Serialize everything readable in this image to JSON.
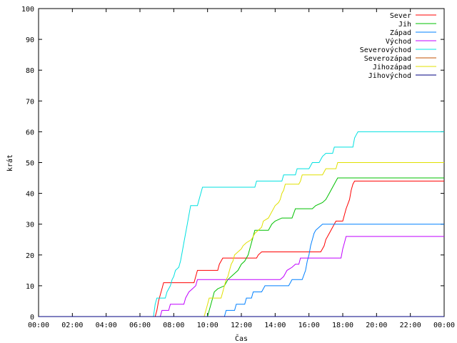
{
  "chart_data": {
    "type": "line",
    "xlabel": "Čas",
    "ylabel": "krát",
    "xlim": [
      0,
      24
    ],
    "ylim": [
      0,
      100
    ],
    "x_ticks": [
      0,
      2,
      4,
      6,
      8,
      10,
      12,
      14,
      16,
      18,
      20,
      22,
      24
    ],
    "x_tick_labels": [
      "00:00",
      "02:00",
      "04:00",
      "06:00",
      "08:00",
      "10:00",
      "12:00",
      "14:00",
      "16:00",
      "18:00",
      "20:00",
      "22:00",
      "00:00"
    ],
    "y_ticks": [
      0,
      10,
      20,
      30,
      40,
      50,
      60,
      70,
      80,
      90,
      100
    ],
    "y_tick_labels": [
      "0",
      "10",
      "20",
      "30",
      "40",
      "50",
      "60",
      "70",
      "80",
      "90",
      "100"
    ],
    "legend_position": "top-right",
    "series": [
      {
        "name": "Sever",
        "color": "#ff0000",
        "points": [
          [
            0,
            0
          ],
          [
            6.9,
            0
          ],
          [
            7.0,
            2
          ],
          [
            7.1,
            5
          ],
          [
            7.2,
            7
          ],
          [
            7.3,
            9
          ],
          [
            7.4,
            11
          ],
          [
            9.2,
            11
          ],
          [
            9.3,
            13
          ],
          [
            9.4,
            15
          ],
          [
            10.6,
            15
          ],
          [
            10.7,
            17
          ],
          [
            10.9,
            19
          ],
          [
            12.9,
            19
          ],
          [
            13.0,
            20
          ],
          [
            13.2,
            21
          ],
          [
            16.7,
            21
          ],
          [
            16.9,
            23
          ],
          [
            17.0,
            25
          ],
          [
            17.2,
            27
          ],
          [
            17.4,
            29
          ],
          [
            17.6,
            31
          ],
          [
            18.0,
            31
          ],
          [
            18.2,
            35
          ],
          [
            18.4,
            38
          ],
          [
            18.5,
            41
          ],
          [
            18.6,
            43
          ],
          [
            18.7,
            44
          ],
          [
            24,
            44
          ]
        ]
      },
      {
        "name": "Jih",
        "color": "#00c000",
        "points": [
          [
            0,
            0
          ],
          [
            10.0,
            0
          ],
          [
            10.1,
            2
          ],
          [
            10.2,
            4
          ],
          [
            10.3,
            6
          ],
          [
            10.4,
            8
          ],
          [
            10.6,
            9
          ],
          [
            11.0,
            10
          ],
          [
            11.2,
            12
          ],
          [
            11.4,
            13
          ],
          [
            11.6,
            14
          ],
          [
            11.8,
            15
          ],
          [
            12.0,
            17
          ],
          [
            12.2,
            18
          ],
          [
            12.4,
            20
          ],
          [
            12.5,
            22
          ],
          [
            12.6,
            24
          ],
          [
            12.7,
            26
          ],
          [
            12.8,
            28
          ],
          [
            13.6,
            28
          ],
          [
            13.8,
            30
          ],
          [
            14.0,
            31
          ],
          [
            14.4,
            32
          ],
          [
            15.0,
            32
          ],
          [
            15.2,
            35
          ],
          [
            16.2,
            35
          ],
          [
            16.4,
            36
          ],
          [
            16.8,
            37
          ],
          [
            17.0,
            38
          ],
          [
            17.2,
            40
          ],
          [
            17.4,
            42
          ],
          [
            17.6,
            44
          ],
          [
            17.7,
            45
          ],
          [
            24,
            45
          ]
        ]
      },
      {
        "name": "Západ",
        "color": "#0080ff",
        "points": [
          [
            0,
            0
          ],
          [
            11.0,
            0
          ],
          [
            11.1,
            2
          ],
          [
            11.6,
            2
          ],
          [
            11.7,
            4
          ],
          [
            12.2,
            4
          ],
          [
            12.3,
            6
          ],
          [
            12.6,
            6
          ],
          [
            12.7,
            8
          ],
          [
            13.2,
            8
          ],
          [
            13.4,
            10
          ],
          [
            14.8,
            10
          ],
          [
            15.0,
            12
          ],
          [
            15.6,
            12
          ],
          [
            15.8,
            15
          ],
          [
            15.9,
            18
          ],
          [
            16.0,
            20
          ],
          [
            16.1,
            23
          ],
          [
            16.2,
            25
          ],
          [
            16.3,
            27
          ],
          [
            16.4,
            28
          ],
          [
            16.6,
            29
          ],
          [
            16.8,
            30
          ],
          [
            24,
            30
          ]
        ]
      },
      {
        "name": "Východ",
        "color": "#c000ff",
        "points": [
          [
            0,
            0
          ],
          [
            7.2,
            0
          ],
          [
            7.3,
            2
          ],
          [
            7.7,
            2
          ],
          [
            7.8,
            4
          ],
          [
            8.6,
            4
          ],
          [
            8.7,
            6
          ],
          [
            8.9,
            8
          ],
          [
            9.1,
            9
          ],
          [
            9.3,
            10
          ],
          [
            9.4,
            12
          ],
          [
            12.0,
            12
          ],
          [
            14.3,
            12
          ],
          [
            14.5,
            13
          ],
          [
            14.7,
            15
          ],
          [
            15.0,
            16
          ],
          [
            15.2,
            17
          ],
          [
            15.4,
            17
          ],
          [
            15.5,
            19
          ],
          [
            17.9,
            19
          ],
          [
            18.0,
            22
          ],
          [
            18.1,
            24
          ],
          [
            18.2,
            26
          ],
          [
            24,
            26
          ]
        ]
      },
      {
        "name": "Severovýchod",
        "color": "#00e0e0",
        "points": [
          [
            0,
            0
          ],
          [
            6.8,
            0
          ],
          [
            6.9,
            4
          ],
          [
            7.0,
            6
          ],
          [
            7.5,
            6
          ],
          [
            7.6,
            8
          ],
          [
            7.8,
            10
          ],
          [
            7.9,
            12
          ],
          [
            8.0,
            13
          ],
          [
            8.1,
            15
          ],
          [
            8.3,
            16
          ],
          [
            8.4,
            18
          ],
          [
            8.5,
            21
          ],
          [
            8.6,
            24
          ],
          [
            8.7,
            27
          ],
          [
            8.8,
            30
          ],
          [
            8.9,
            33
          ],
          [
            9.0,
            36
          ],
          [
            9.4,
            36
          ],
          [
            9.5,
            38
          ],
          [
            9.6,
            40
          ],
          [
            9.7,
            42
          ],
          [
            12.0,
            42
          ],
          [
            12.8,
            42
          ],
          [
            12.9,
            44
          ],
          [
            14.4,
            44
          ],
          [
            14.5,
            46
          ],
          [
            15.2,
            46
          ],
          [
            15.3,
            48
          ],
          [
            16.0,
            48
          ],
          [
            16.2,
            50
          ],
          [
            16.6,
            50
          ],
          [
            16.8,
            52
          ],
          [
            17.0,
            53
          ],
          [
            17.4,
            53
          ],
          [
            17.5,
            55
          ],
          [
            18.6,
            55
          ],
          [
            18.7,
            58
          ],
          [
            18.8,
            59
          ],
          [
            18.9,
            60
          ],
          [
            24,
            60
          ]
        ]
      },
      {
        "name": "Severozápad",
        "color": "#c05000",
        "points": [
          [
            0,
            0
          ],
          [
            24,
            0
          ]
        ]
      },
      {
        "name": "Jihozápad",
        "color": "#e0e000",
        "points": [
          [
            0,
            0
          ],
          [
            9.8,
            0
          ],
          [
            9.9,
            2
          ],
          [
            10.0,
            4
          ],
          [
            10.1,
            6
          ],
          [
            10.8,
            6
          ],
          [
            10.9,
            8
          ],
          [
            11.0,
            10
          ],
          [
            11.1,
            12
          ],
          [
            11.2,
            13
          ],
          [
            11.3,
            15
          ],
          [
            11.4,
            17
          ],
          [
            11.5,
            18
          ],
          [
            11.6,
            20
          ],
          [
            11.8,
            21
          ],
          [
            12.0,
            22
          ],
          [
            12.1,
            23
          ],
          [
            12.3,
            24
          ],
          [
            12.6,
            25
          ],
          [
            12.8,
            27
          ],
          [
            13.0,
            28
          ],
          [
            13.2,
            29
          ],
          [
            13.3,
            31
          ],
          [
            13.6,
            32
          ],
          [
            13.8,
            34
          ],
          [
            14.0,
            36
          ],
          [
            14.2,
            37
          ],
          [
            14.3,
            38
          ],
          [
            14.4,
            40
          ],
          [
            14.5,
            41
          ],
          [
            14.6,
            43
          ],
          [
            15.4,
            43
          ],
          [
            15.5,
            44
          ],
          [
            15.6,
            46
          ],
          [
            16.8,
            46
          ],
          [
            16.9,
            47
          ],
          [
            17.0,
            48
          ],
          [
            17.6,
            48
          ],
          [
            17.7,
            50
          ],
          [
            24,
            50
          ]
        ]
      },
      {
        "name": "Jihovýchod",
        "color": "#000080",
        "points": [
          [
            0,
            0
          ],
          [
            24,
            0
          ]
        ]
      }
    ]
  }
}
